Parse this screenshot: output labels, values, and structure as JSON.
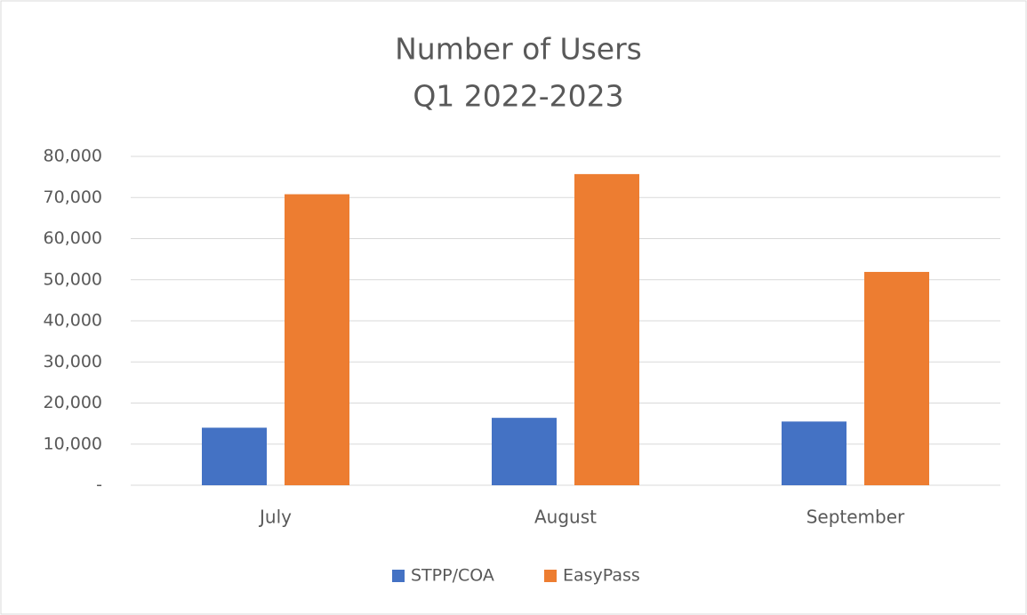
{
  "chart_data": {
    "type": "bar",
    "title": "Number of Users",
    "subtitle": "Q1 2022-2023",
    "categories": [
      "July",
      "August",
      "September"
    ],
    "series": [
      {
        "name": "STPP/COA",
        "color": "#4472c4",
        "values": [
          14000,
          16400,
          15500
        ]
      },
      {
        "name": "EasyPass",
        "color": "#ed7d31",
        "values": [
          70800,
          75700,
          51900
        ]
      }
    ],
    "ylim": [
      0,
      80000
    ],
    "yticks": [
      {
        "value": 0,
        "label": "-"
      },
      {
        "value": 10000,
        "label": "10,000"
      },
      {
        "value": 20000,
        "label": "20,000"
      },
      {
        "value": 30000,
        "label": "30,000"
      },
      {
        "value": 40000,
        "label": "40,000"
      },
      {
        "value": 50000,
        "label": "50,000"
      },
      {
        "value": 60000,
        "label": "60,000"
      },
      {
        "value": 70000,
        "label": "70,000"
      },
      {
        "value": 80000,
        "label": "80,000"
      }
    ],
    "grid": true,
    "legend": "bottom"
  }
}
